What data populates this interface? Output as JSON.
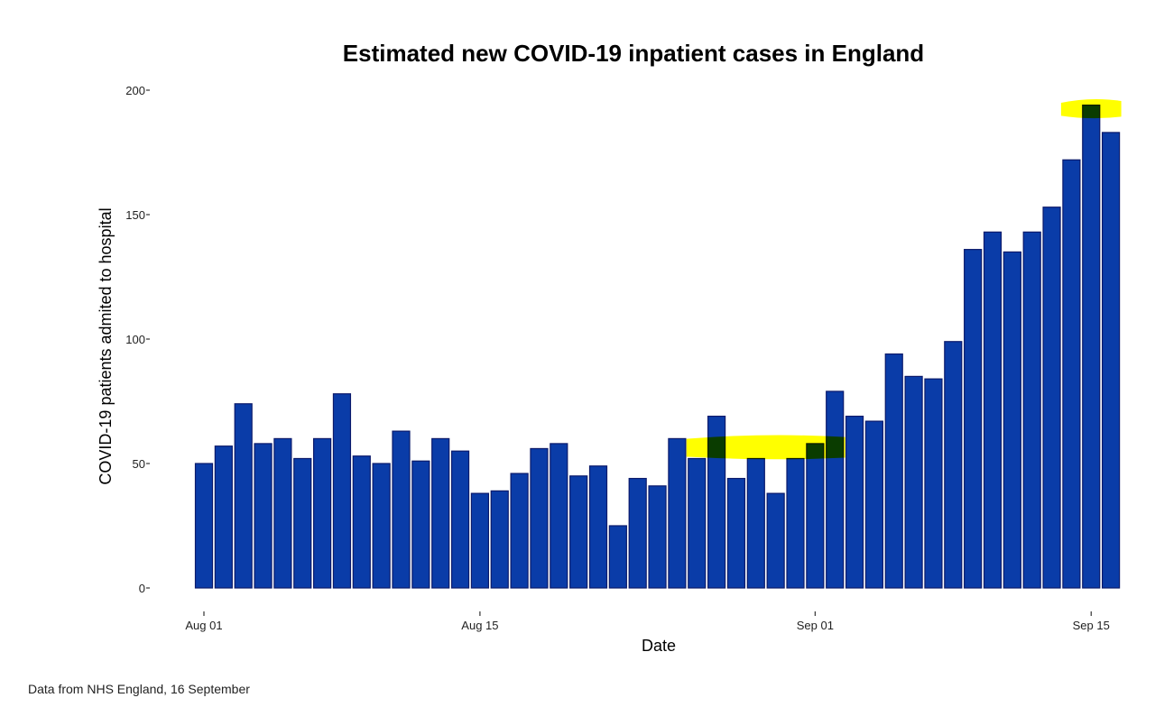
{
  "chart_data": {
    "type": "bar",
    "title": "Estimated new COVID-19 inpatient cases in England",
    "xlabel": "Date",
    "ylabel": "COVID-19 patients admited to hospital",
    "ylim": [
      0,
      200
    ],
    "yticks": [
      0,
      50,
      100,
      150,
      200
    ],
    "xticks": [
      {
        "label": "Aug 01",
        "index": 0
      },
      {
        "label": "Aug 15",
        "index": 14
      },
      {
        "label": "Sep 01",
        "index": 31
      },
      {
        "label": "Sep 15",
        "index": 45
      }
    ],
    "grid": false,
    "categories": [
      "Aug 01",
      "Aug 02",
      "Aug 03",
      "Aug 04",
      "Aug 05",
      "Aug 06",
      "Aug 07",
      "Aug 08",
      "Aug 09",
      "Aug 10",
      "Aug 11",
      "Aug 12",
      "Aug 13",
      "Aug 14",
      "Aug 15",
      "Aug 16",
      "Aug 17",
      "Aug 18",
      "Aug 19",
      "Aug 20",
      "Aug 21",
      "Aug 22",
      "Aug 23",
      "Aug 24",
      "Aug 25",
      "Aug 26",
      "Aug 27",
      "Aug 28",
      "Aug 29",
      "Aug 30",
      "Aug 31",
      "Sep 01",
      "Sep 02",
      "Sep 03",
      "Sep 04",
      "Sep 05",
      "Sep 06",
      "Sep 07",
      "Sep 08",
      "Sep 09",
      "Sep 10",
      "Sep 11",
      "Sep 12",
      "Sep 13",
      "Sep 14",
      "Sep 15",
      "Sep 16"
    ],
    "values": [
      50,
      57,
      74,
      58,
      60,
      52,
      60,
      78,
      53,
      50,
      63,
      51,
      60,
      55,
      38,
      39,
      46,
      56,
      58,
      45,
      49,
      25,
      44,
      41,
      60,
      52,
      69,
      44,
      52,
      38,
      52,
      58,
      79,
      69,
      67,
      94,
      85,
      84,
      99,
      136,
      143,
      135,
      143,
      153,
      172,
      194,
      183
    ],
    "bar_color": "#0a3ca8",
    "bar_outline_color": "#0b1a6b",
    "annotations": [
      {
        "type": "highlight",
        "color": "#ffff00",
        "from_index": 25,
        "to_index": 32,
        "y_range": [
          52,
          61
        ]
      },
      {
        "type": "highlight",
        "color": "#ffff00",
        "from_index": 44,
        "to_index": 46,
        "y_range": [
          189,
          196
        ]
      }
    ]
  },
  "footer": "Data from NHS England, 16 September"
}
